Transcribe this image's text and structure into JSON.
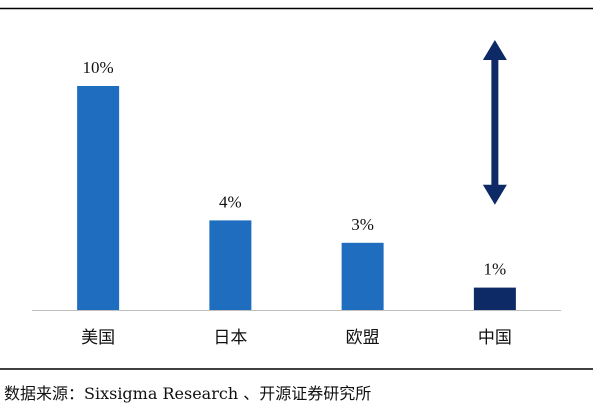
{
  "chart_data": {
    "type": "bar",
    "categories": [
      "美国",
      "日本",
      "欧盟",
      "中国"
    ],
    "values": [
      10,
      4,
      3,
      1
    ],
    "value_labels": [
      "10%",
      "4%",
      "3%",
      "1%"
    ],
    "unit": "%",
    "ylim": [
      0,
      11
    ],
    "grid": false,
    "legend": "none",
    "colors": {
      "bar": "#1f6dbf",
      "highlight_bar": "#0d2a66",
      "arrow": "#0d2a66",
      "rule": "#000000",
      "baseline": "#bfbfbf"
    },
    "highlight_index": 3,
    "annotation": {
      "type": "double-arrow",
      "category_index": 3,
      "from_value": 10,
      "to_value": 3
    }
  },
  "source_note": "数据来源：Sixsigma Research 、开源证券研究所"
}
